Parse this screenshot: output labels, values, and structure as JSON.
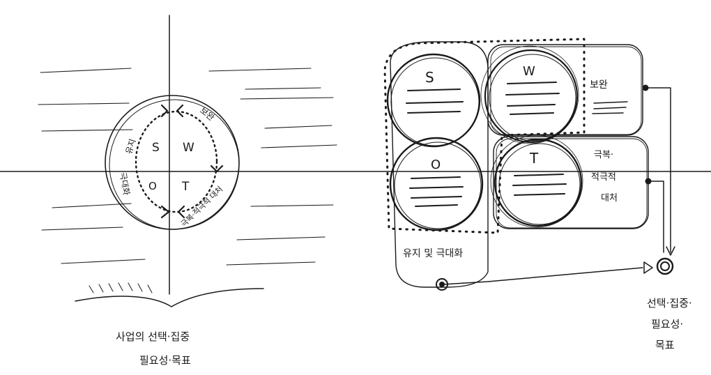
{
  "left_diagram": {
    "quadrants": {
      "s": "S",
      "w": "W",
      "o": "O",
      "t": "T"
    },
    "ring_labels": {
      "top_left": "유지",
      "left": "극대화",
      "top_right": "보완",
      "bottom_right": "극복·적극적 대처"
    },
    "caption_line1": "사업의 선택·집중",
    "caption_line2": "필요성·목표"
  },
  "right_diagram": {
    "boxes": {
      "s": "S",
      "w": "W",
      "o": "O",
      "t": "T"
    },
    "w_side_label": "보완",
    "t_side_label_1": "극복·",
    "t_side_label_2": "적극적",
    "t_side_label_3": "대처",
    "so_bottom_label": "유지 및 극대화",
    "result_line1": "선택·집중·",
    "result_line2": "필요성·",
    "result_line3": "목표"
  },
  "colors": {
    "ink": "#1a1a1a",
    "paper": "#ffffff"
  }
}
